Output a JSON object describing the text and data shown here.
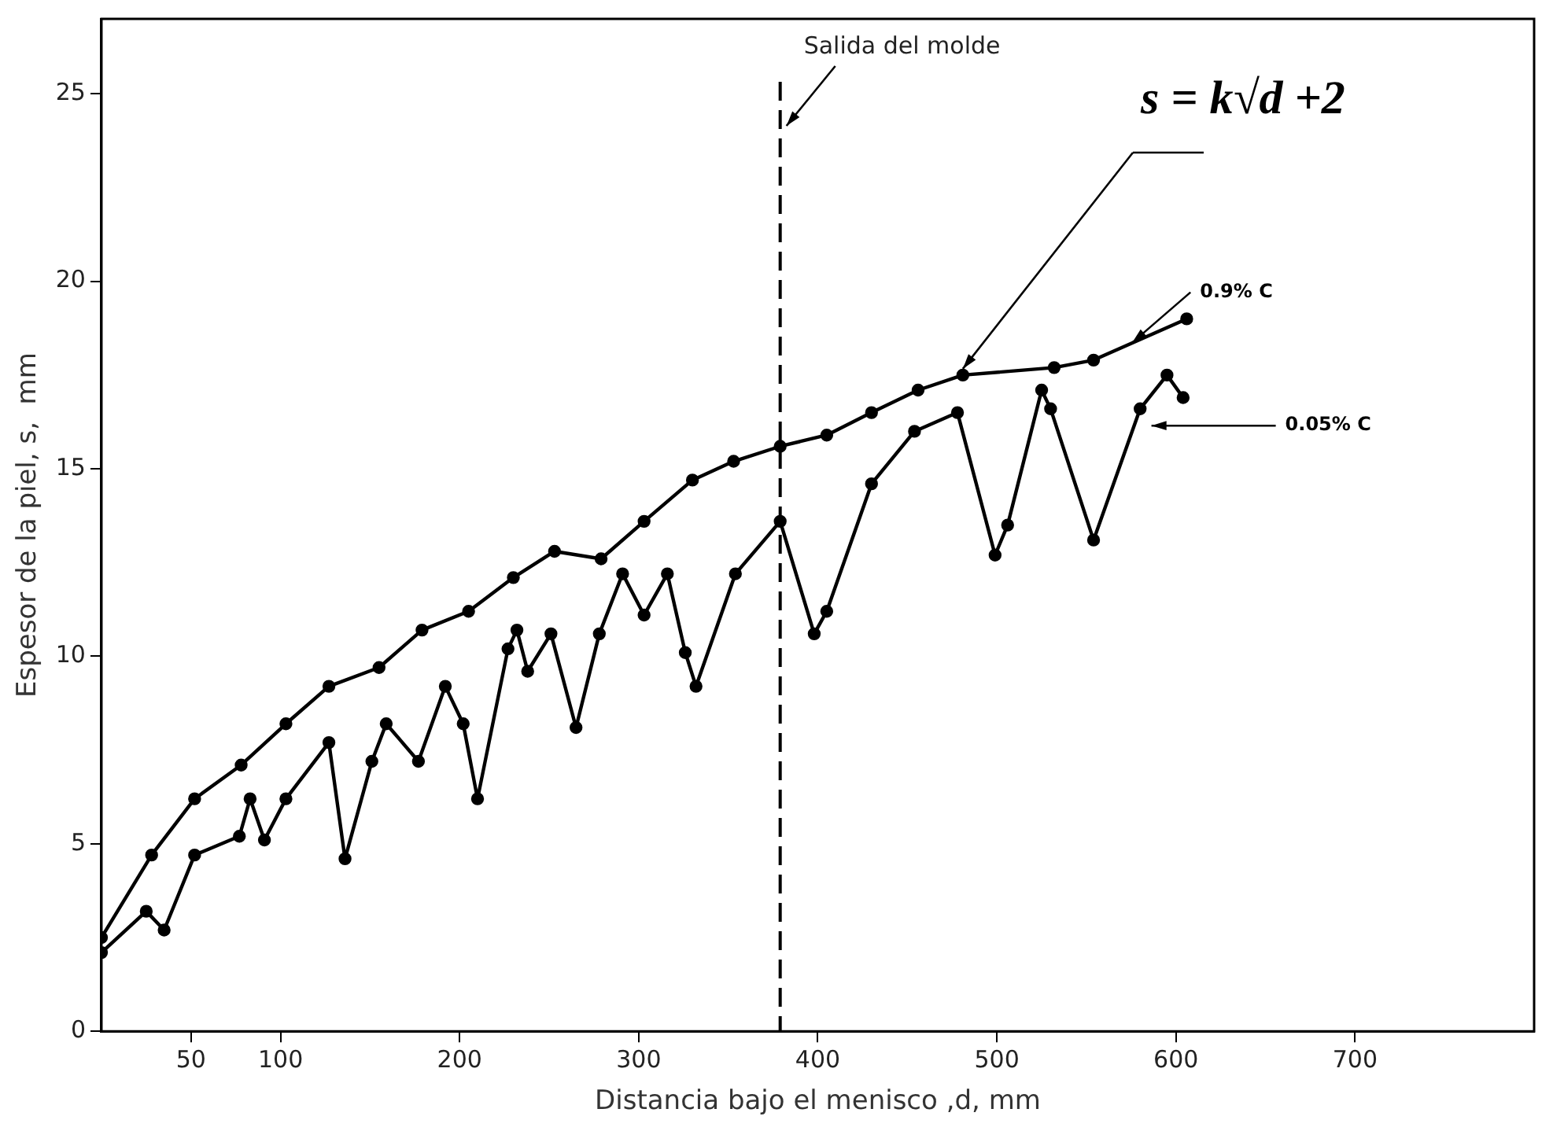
{
  "chart_data": {
    "type": "line",
    "xlabel": "Distancia bajo el menisco ,d, mm",
    "ylabel": "Espesor de la piel, s,  mm",
    "xlim": [
      0,
      800
    ],
    "xticks": [
      50,
      100,
      200,
      300,
      400,
      500,
      600,
      700
    ],
    "ylim": [
      0,
      27
    ],
    "yticks": [
      0,
      5,
      10,
      15,
      20,
      25
    ],
    "grid": false,
    "legend": false,
    "marker": "circle",
    "line_style": "solid",
    "ref_lines": [
      {
        "axis": "x",
        "value": 379,
        "label": "Salida del molde",
        "line_style": "dashed",
        "color": "#000000"
      }
    ],
    "annotations": [
      {
        "text": "s = k√d +2",
        "x": 481,
        "y": 17.5
      }
    ],
    "series": [
      {
        "name": "0.9% C",
        "color": "#000000",
        "x": [
          0,
          28,
          52,
          78,
          103,
          127,
          155,
          179,
          205,
          230,
          253,
          279,
          303,
          330,
          353,
          379,
          405,
          430,
          456,
          481,
          532,
          554,
          606
        ],
        "values": [
          2.5,
          4.7,
          6.2,
          7.1,
          8.2,
          9.2,
          9.7,
          10.7,
          11.2,
          12.1,
          12.8,
          12.6,
          13.6,
          14.7,
          15.2,
          15.6,
          15.9,
          16.5,
          17.1,
          17.5,
          17.7,
          17.9,
          19.0
        ]
      },
      {
        "name": "0.05% C",
        "color": "#000000",
        "x": [
          0,
          25,
          35,
          52,
          77,
          83,
          91,
          103,
          127,
          136,
          151,
          159,
          177,
          192,
          202,
          210,
          227,
          232,
          238,
          251,
          265,
          278,
          291,
          303,
          316,
          326,
          332,
          354,
          379,
          398,
          405,
          430,
          454,
          478,
          499,
          506,
          525,
          530,
          554,
          580,
          595,
          604
        ],
        "values": [
          2.1,
          3.2,
          2.7,
          4.7,
          5.2,
          6.2,
          5.1,
          6.2,
          7.7,
          4.6,
          7.2,
          8.2,
          7.2,
          9.2,
          8.2,
          6.2,
          10.2,
          10.7,
          9.6,
          10.6,
          8.1,
          10.6,
          12.2,
          11.1,
          12.2,
          10.1,
          9.2,
          12.2,
          13.6,
          10.6,
          11.2,
          14.6,
          16.0,
          16.5,
          12.7,
          13.5,
          17.1,
          16.6,
          13.1,
          16.6,
          17.5,
          16.9
        ]
      }
    ]
  }
}
